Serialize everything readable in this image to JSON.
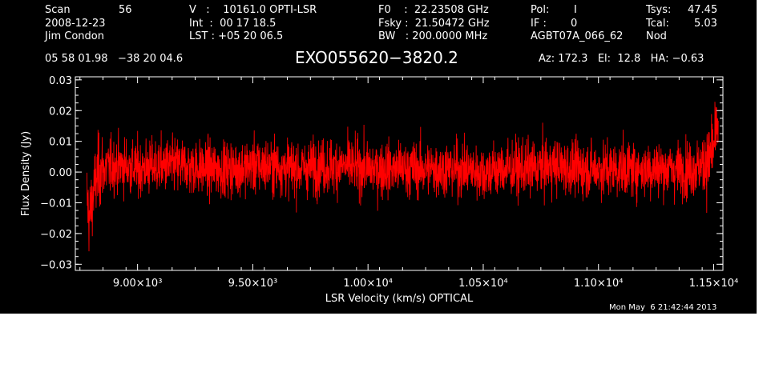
{
  "header": {
    "scan_label": "Scan",
    "scan_number": "56",
    "date": "2008-12-23",
    "observer": "Jim Condon",
    "v_line": "V   :    10161.0 OPTI-LSR",
    "int_line": "Int  :  00 17 18.5",
    "lst_line": "LST : +05 20 06.5",
    "f0_line": "F0    :  22.23508 GHz",
    "fsky_line": "Fsky :  21.50472 GHz",
    "bw_line": "BW   : 200.0000 MHz",
    "pol_label": "Pol:",
    "pol_value": "I",
    "if_label": "IF :",
    "if_value": "0",
    "project": "AGBT07A_066_62",
    "tsys_label": "Tsys:",
    "tsys_value": "47.45",
    "tcal_label": "Tcal:",
    "tcal_value": "5.03",
    "mode": "Nod",
    "coords": "05 58 01.98   −38 20 04.6",
    "source": "EXO055620−3820.2",
    "az_el_ha": "Az: 172.3   El:  12.8   HA: −0.63",
    "timestamp": "Mon May  6 21:42:44 2013"
  },
  "chart_data": {
    "type": "line",
    "xlabel": "LSR Velocity (km/s) OPTICAL",
    "ylabel": "Flux Density (Jy)",
    "xlim": [
      8730,
      11540
    ],
    "ylim": [
      -0.032,
      0.031
    ],
    "x_ticks": [
      9000,
      9500,
      10000,
      10500,
      11000,
      11500
    ],
    "x_tick_labels": [
      "9.00×10³",
      "9.50×10³",
      "1.00×10⁴",
      "1.05×10⁴",
      "1.10×10⁴",
      "1.15×10⁴"
    ],
    "y_ticks": [
      -0.03,
      -0.02,
      -0.01,
      0.0,
      0.01,
      0.02,
      0.03
    ],
    "y_tick_labels": [
      "−0.03",
      "−0.02",
      "−0.01",
      "0.00",
      "0.01",
      "0.02",
      "0.03"
    ],
    "grid": false,
    "series": [
      {
        "color": "#ff0000",
        "x": [
          8780,
          8790,
          8800,
          8810,
          8830,
          8850,
          8900,
          8950,
          9000,
          9100,
          9200,
          9300,
          9400,
          9500,
          9600,
          9700,
          9800,
          9900,
          10000,
          10100,
          10200,
          10300,
          10400,
          10500,
          10600,
          10700,
          10800,
          10900,
          11000,
          11100,
          11200,
          11300,
          11400,
          11450,
          11480,
          11500,
          11510,
          11520
        ],
        "y": [
          -0.008,
          -0.015,
          -0.011,
          -0.006,
          0.0,
          0.001,
          0.002,
          0.002,
          0.001,
          0.002,
          0.002,
          0.001,
          0.001,
          0.002,
          0.002,
          0.001,
          0.002,
          0.002,
          0.001,
          0.001,
          0.001,
          0.001,
          0.001,
          0.0,
          0.001,
          0.001,
          0.002,
          0.001,
          0.001,
          0.001,
          0.001,
          0.001,
          0.001,
          0.002,
          0.004,
          0.008,
          0.012,
          0.015
        ],
        "noise_rms": 0.006
      }
    ]
  }
}
